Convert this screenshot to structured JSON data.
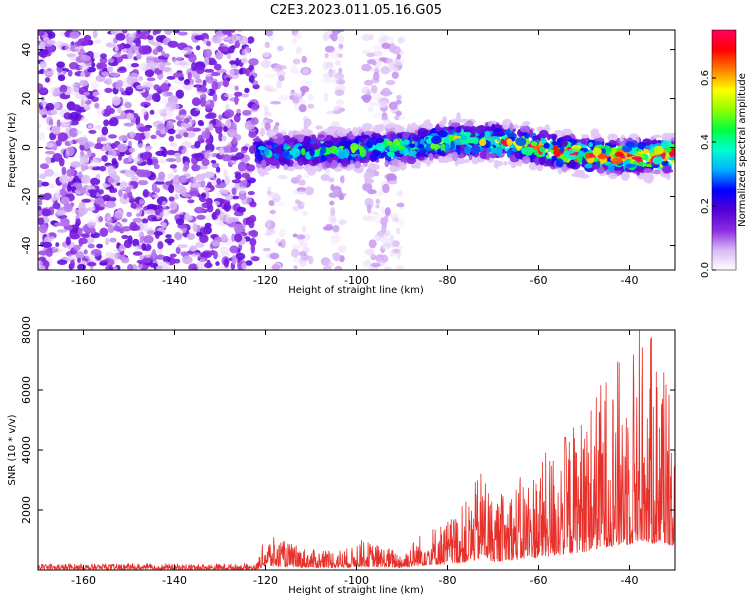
{
  "title": "C2E3.2023.011.05.16.G05",
  "chart_data": [
    {
      "type": "heatmap",
      "name": "spectrogram",
      "xlabel": "Height of straight line (km)",
      "ylabel": "Frequency (Hz)",
      "xlim": [
        -170,
        -30
      ],
      "ylim": [
        -50,
        48
      ],
      "xticks": [
        -160,
        -140,
        -120,
        -100,
        -80,
        -60,
        -40
      ],
      "yticks": [
        -40,
        -20,
        0,
        20,
        40
      ],
      "colorbar": {
        "label": "Normalized spectral amplitude",
        "range": [
          0.0,
          0.75
        ],
        "ticks": [
          0.0,
          0.2,
          0.4,
          0.6
        ],
        "colormap": [
          "#ffffff",
          "#d9b8f5",
          "#8a2be2",
          "#5200d6",
          "#0000ff",
          "#00b0ff",
          "#00ffd0",
          "#00ff40",
          "#90ff00",
          "#ffff00",
          "#ff8000",
          "#ff0000",
          "#ff0060"
        ]
      },
      "regions": [
        {
          "desc": "diffuse noise",
          "x_range": [
            -170,
            -122
          ],
          "freq_range": [
            -50,
            48
          ],
          "amplitude": 0.1
        },
        {
          "desc": "diffuse noise",
          "x_range": [
            -120,
            -90
          ],
          "freq_range": [
            -50,
            48
          ],
          "amplitude": 0.05
        },
        {
          "desc": "signal band",
          "x_range": [
            -122,
            -30
          ],
          "center_hz": [
            [
              -122,
              -2
            ],
            [
              -90,
              0
            ],
            [
              -80,
              3
            ],
            [
              -70,
              3
            ],
            [
              -60,
              0
            ],
            [
              -50,
              -3
            ],
            [
              -40,
              -4
            ],
            [
              -30,
              -3
            ]
          ],
          "halfwidth_hz": 7,
          "amplitude": [
            0.3,
            0.75
          ]
        }
      ]
    },
    {
      "type": "line",
      "name": "snr",
      "xlabel": "Height of straight line (km)",
      "ylabel": "SNR (10 * v/v)",
      "xlim": [
        -170,
        -30
      ],
      "ylim": [
        0,
        8000
      ],
      "xticks": [
        -160,
        -140,
        -120,
        -100,
        -80,
        -60,
        -40
      ],
      "yticks": [
        2000,
        4000,
        6000,
        8000
      ],
      "color": "#e8302a",
      "series": [
        {
          "name": "SNR",
          "envelope_x": [
            -170,
            -122,
            -120,
            -110,
            -101,
            -100,
            -90,
            -85,
            -80,
            -75,
            -72,
            -70,
            -65,
            -60,
            -55,
            -50,
            -45,
            -40,
            -38,
            -35,
            -32,
            -30
          ],
          "envelope_max": [
            200,
            200,
            1100,
            650,
            700,
            1000,
            600,
            1300,
            1600,
            2300,
            3500,
            2200,
            2800,
            3400,
            4200,
            5000,
            6300,
            7000,
            8000,
            7300,
            7200,
            6300
          ]
        }
      ]
    }
  ]
}
